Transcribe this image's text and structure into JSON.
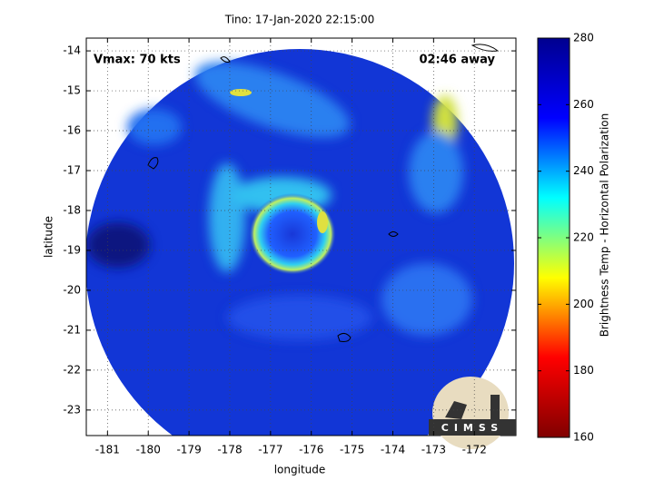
{
  "chart_data": {
    "type": "image",
    "title": "Tino: 17-Jan-2020 22:15:00",
    "xlabel": "longitude",
    "ylabel": "latitude",
    "annotations": [
      "Vmax: 70 kts",
      "02:46 away"
    ],
    "xlim": [
      -181.52,
      -170.98
    ],
    "ylim": [
      -23.64,
      -13.68
    ],
    "xticks": [
      -181,
      -180,
      -179,
      -178,
      -177,
      -176,
      -175,
      -174,
      -173,
      -172
    ],
    "yticks": [
      -14,
      -15,
      -16,
      -17,
      -18,
      -19,
      -20,
      -21,
      -22,
      -23
    ],
    "grid": true,
    "colorbar": {
      "label": "Brightness Temp - Horizontal Polarization",
      "lim": [
        160,
        280
      ],
      "ticks": [
        160,
        180,
        200,
        220,
        240,
        260,
        280
      ],
      "colormap": "jet"
    },
    "logo": "CIMSS"
  }
}
